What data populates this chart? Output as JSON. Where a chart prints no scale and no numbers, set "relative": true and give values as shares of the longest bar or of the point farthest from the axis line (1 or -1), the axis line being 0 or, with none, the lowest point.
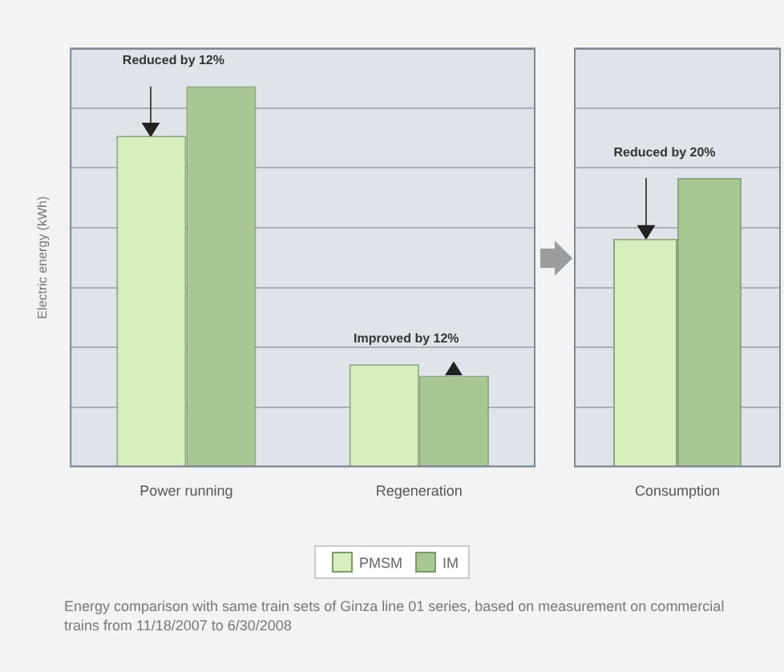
{
  "chart_data": [
    {
      "type": "bar",
      "relative": true,
      "ylabel": "Electric energy (kWh)",
      "categories": [
        "Power running",
        "Regeneration"
      ],
      "series": [
        {
          "name": "PMSM",
          "color": "#d6efbd",
          "values": [
            0.87,
            0.27
          ]
        },
        {
          "name": "IM",
          "color": "#a8c793",
          "values": [
            1,
            0.24
          ]
        }
      ],
      "grid": "y",
      "legend": "bottom",
      "tick_labels": "x",
      "annotations": [
        {
          "text": "Reduced by 12%",
          "x": "Power running",
          "y": 1
        },
        {
          "text": "Improved by 12%",
          "x": "Regeneration",
          "y": 0.27
        },
        "Energy comparison with same train sets of Ginza line 01 series, based on measurement on commercial trains from 11/18/2007 to 6/30/2008"
      ]
    },
    {
      "type": "bar",
      "relative": true,
      "categories": [
        "Consumption"
      ],
      "series": [
        {
          "color": "#d6efbd",
          "values": [
            0.79
          ]
        },
        {
          "color": "#a8c793",
          "values": [
            1
          ]
        }
      ],
      "grid": "y",
      "tick_labels": "x",
      "annotations": [
        {
          "text": "Reduced by 20%",
          "x": "Consumption",
          "y": 1
        }
      ]
    }
  ]
}
